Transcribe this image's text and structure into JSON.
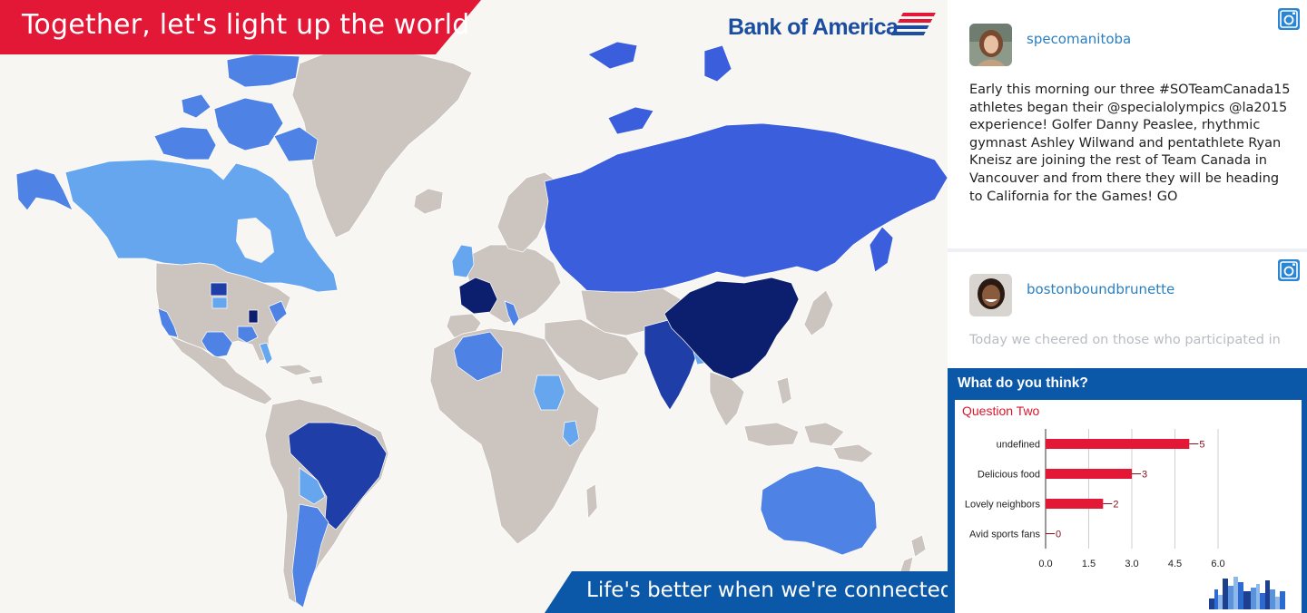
{
  "header": {
    "headline": "Together, let's light up the world",
    "brand": "Bank of America",
    "tagline": "Life's better when we're connected"
  },
  "colors": {
    "brand_red": "#e31837",
    "brand_blue": "#1b4da0",
    "tagline_blue": "#0c58a8",
    "land_default": "#ccc4be",
    "shade_light": "#66a6ef",
    "shade_medium": "#4e82e4",
    "shade_strong": "#3a5edc",
    "shade_darker": "#1f3ea8",
    "shade_darkest": "#0c1f6e"
  },
  "feed": {
    "posts": [
      {
        "username": "specomanitoba",
        "text": "Early this morning our three #SOTeamCanada15 athletes began their @specialolympics @la2015 experience! Golfer Danny Peaslee, rhythmic gymnast Ashley Wilwand and pentathlete Ryan Kneisz are joining the rest of Team Canada in Vancouver and from there they will be heading to California for the Games! GO",
        "icon": "instagram-icon"
      },
      {
        "username": "bostonboundbrunette",
        "text": "Today we cheered on those who participated in",
        "icon": "instagram-icon"
      }
    ]
  },
  "poll": {
    "title": "What do you think?",
    "question": "Question Two"
  },
  "chart_data": {
    "type": "bar",
    "orientation": "horizontal",
    "title": "Question Two",
    "categories": [
      "undefined",
      "Delicious food",
      "Lovely neighbors",
      "Avid sports fans"
    ],
    "values": [
      5,
      3,
      2,
      0
    ],
    "xlim": [
      0,
      6
    ],
    "xticks": [
      "0.0",
      "1.5",
      "3.0",
      "4.5",
      "6.0"
    ],
    "grid": true,
    "bar_color": "#e31837"
  }
}
